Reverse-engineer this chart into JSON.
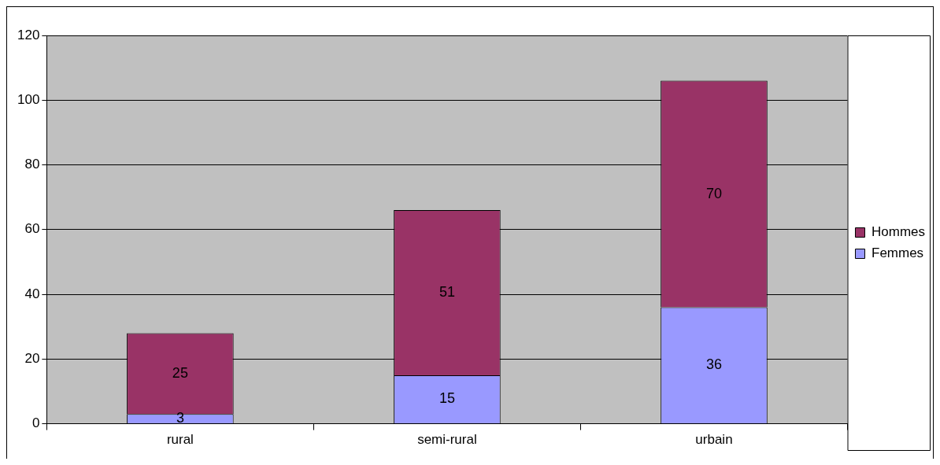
{
  "chart_data": {
    "type": "bar",
    "categories": [
      "rural",
      "semi-rural",
      "urbain"
    ],
    "series": [
      {
        "name": "Femmes",
        "color": "#9999ff",
        "values": [
          3,
          15,
          36
        ]
      },
      {
        "name": "Hommes",
        "color": "#993366",
        "values": [
          25,
          51,
          70
        ]
      }
    ],
    "stacked": true,
    "ylim": [
      0,
      120
    ],
    "yticks": [
      0,
      20,
      40,
      60,
      80,
      100,
      120
    ],
    "grid": "y",
    "legend": "right",
    "data_labels": true
  }
}
